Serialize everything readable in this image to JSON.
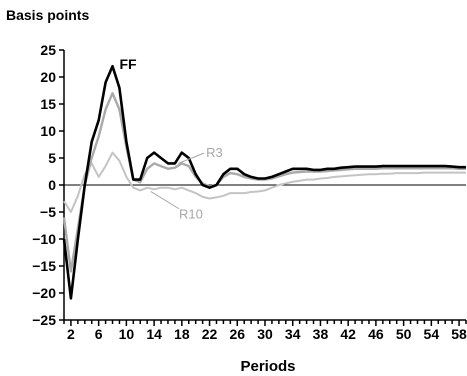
{
  "chart_data": {
    "type": "line",
    "title": "",
    "ylabel": "Basis points",
    "xlabel": "Periods",
    "xlim": [
      1,
      59
    ],
    "ylim": [
      -25,
      25
    ],
    "yticks": [
      25,
      20,
      15,
      10,
      5,
      0,
      -5,
      -10,
      -15,
      -20,
      -25
    ],
    "xticks": [
      2,
      6,
      10,
      14,
      18,
      22,
      26,
      30,
      34,
      38,
      42,
      46,
      50,
      54,
      58
    ],
    "grid": false,
    "colors": {
      "FF": "#000000",
      "R3": "#aaaaaa",
      "R10": "#c4c4c4",
      "zero_line": "#000000"
    },
    "series": [
      {
        "name": "FF",
        "labeled": true,
        "x": [
          1,
          2,
          3,
          4,
          5,
          6,
          7,
          8,
          9,
          10,
          11,
          12,
          13,
          14,
          15,
          16,
          17,
          18,
          19,
          20,
          21,
          22,
          23,
          24,
          25,
          26,
          27,
          28,
          29,
          30,
          31,
          32,
          33,
          34,
          35,
          36,
          37,
          38,
          39,
          40,
          41,
          42,
          43,
          44,
          45,
          46,
          47,
          48,
          49,
          50,
          51,
          52,
          53,
          54,
          55,
          56,
          57,
          58,
          59
        ],
        "values": [
          -10,
          -21,
          -10,
          0,
          8,
          12,
          19,
          22,
          18,
          8,
          1,
          1,
          5,
          6,
          5,
          4,
          4,
          6,
          5,
          2,
          0,
          -0.5,
          0,
          2,
          3,
          3,
          2,
          1.5,
          1.2,
          1.2,
          1.5,
          2,
          2.5,
          3,
          3,
          3,
          2.8,
          2.8,
          3,
          3,
          3.2,
          3.3,
          3.4,
          3.4,
          3.4,
          3.4,
          3.5,
          3.5,
          3.5,
          3.5,
          3.5,
          3.5,
          3.5,
          3.5,
          3.5,
          3.5,
          3.4,
          3.3,
          3.3
        ]
      },
      {
        "name": "R3",
        "labeled": true,
        "x": [
          1,
          2,
          3,
          4,
          5,
          6,
          7,
          8,
          9,
          10,
          11,
          12,
          13,
          14,
          15,
          16,
          17,
          18,
          19,
          20,
          21,
          22,
          23,
          24,
          25,
          26,
          27,
          28,
          29,
          30,
          31,
          32,
          33,
          34,
          35,
          36,
          37,
          38,
          39,
          40,
          41,
          42,
          43,
          44,
          45,
          46,
          47,
          48,
          49,
          50,
          51,
          52,
          53,
          54,
          55,
          56,
          57,
          58,
          59
        ],
        "values": [
          -6,
          -16,
          -8,
          0,
          5,
          9,
          14,
          17,
          14,
          7,
          1,
          0.5,
          3,
          4,
          3.5,
          3,
          3.2,
          4,
          3.5,
          1.5,
          0.3,
          -0.3,
          0,
          1.5,
          2.2,
          2,
          1.5,
          1.2,
          1,
          1,
          1.2,
          1.6,
          2,
          2.3,
          2.4,
          2.5,
          2.5,
          2.5,
          2.6,
          2.7,
          2.8,
          2.9,
          3,
          3,
          3,
          3,
          3.1,
          3.1,
          3.1,
          3.1,
          3.1,
          3.1,
          3.1,
          3.1,
          3.1,
          3.1,
          3.1,
          3,
          3
        ]
      },
      {
        "name": "R10",
        "labeled": true,
        "x": [
          1,
          2,
          3,
          4,
          5,
          6,
          7,
          8,
          9,
          10,
          11,
          12,
          13,
          14,
          15,
          16,
          17,
          18,
          19,
          20,
          21,
          22,
          23,
          24,
          25,
          26,
          27,
          28,
          29,
          30,
          31,
          32,
          33,
          34,
          35,
          36,
          37,
          38,
          39,
          40,
          41,
          42,
          43,
          44,
          45,
          46,
          47,
          48,
          49,
          50,
          51,
          52,
          53,
          54,
          55,
          56,
          57,
          58,
          59
        ],
        "values": [
          -3,
          -5,
          -2,
          2,
          4,
          1.5,
          3.5,
          6,
          4.5,
          1.5,
          -0.5,
          -1,
          -0.5,
          -0.8,
          -0.5,
          -0.5,
          -0.8,
          -0.5,
          -1,
          -1.5,
          -2.2,
          -2.5,
          -2.3,
          -2,
          -1.5,
          -1.5,
          -1.5,
          -1.3,
          -1.2,
          -1,
          -0.5,
          0,
          0.3,
          0.6,
          0.8,
          1,
          1,
          1.2,
          1.3,
          1.5,
          1.6,
          1.7,
          1.8,
          1.9,
          2,
          2,
          2.1,
          2.1,
          2.2,
          2.2,
          2.2,
          2.2,
          2.3,
          2.3,
          2.3,
          2.3,
          2.3,
          2.3,
          2.3
        ]
      }
    ]
  }
}
